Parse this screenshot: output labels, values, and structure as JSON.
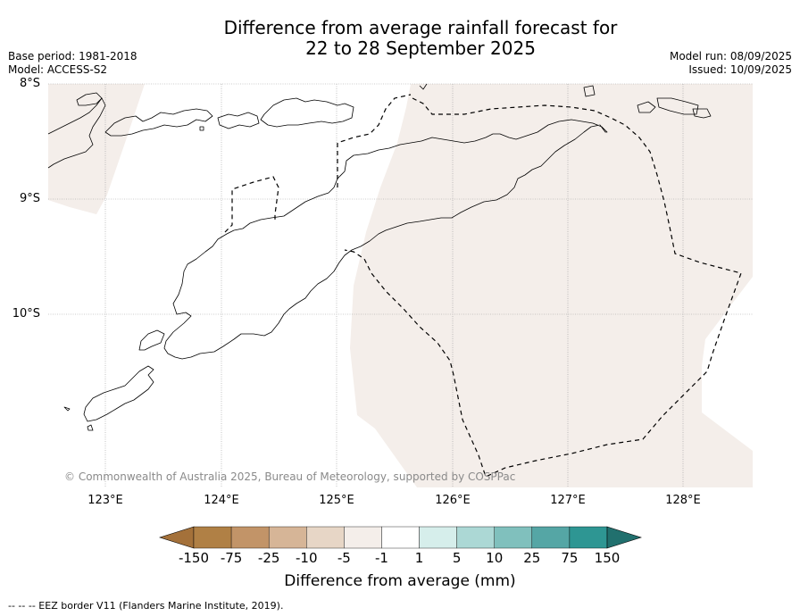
{
  "title": {
    "line1": "Difference from average rainfall forecast for",
    "line2": "22 to 28 September 2025"
  },
  "meta_left": {
    "base_period": "Base period: 1981-2018",
    "model": "Model: ACCESS-S2"
  },
  "meta_right": {
    "model_run": "Model run: 08/09/2025",
    "issued": "Issued: 10/09/2025"
  },
  "map": {
    "latitude_labels": [
      "8°S",
      "9°S",
      "10°S"
    ],
    "longitude_labels": [
      "123°E",
      "124°E",
      "125°E",
      "126°E",
      "127°E",
      "128°E"
    ],
    "copyright": "© Commonwealth of Australia 2025, Bureau of Meteorology, supported by COSPPac",
    "shaded_category": "-5 to -1",
    "shaded_color": "#f4eeea",
    "eez_line_style": "dashed"
  },
  "colorbar": {
    "title": "Difference from average (mm)",
    "tick_labels": [
      "-150",
      "-75",
      "-25",
      "-10",
      "-5",
      "-1",
      "1",
      "5",
      "10",
      "25",
      "75",
      "150"
    ],
    "colors": [
      "#a4713a",
      "#b08045",
      "#c29468",
      "#d6b597",
      "#e7d6c6",
      "#f4eeea",
      "#ffffff",
      "#d6eeeb",
      "#acd8d5",
      "#80c0bd",
      "#55a6a5",
      "#2e9693",
      "#21706e"
    ]
  },
  "footer": {
    "legend_note": "--  --  -- EEZ border V11 (Flanders Marine Institute, 2019)."
  }
}
